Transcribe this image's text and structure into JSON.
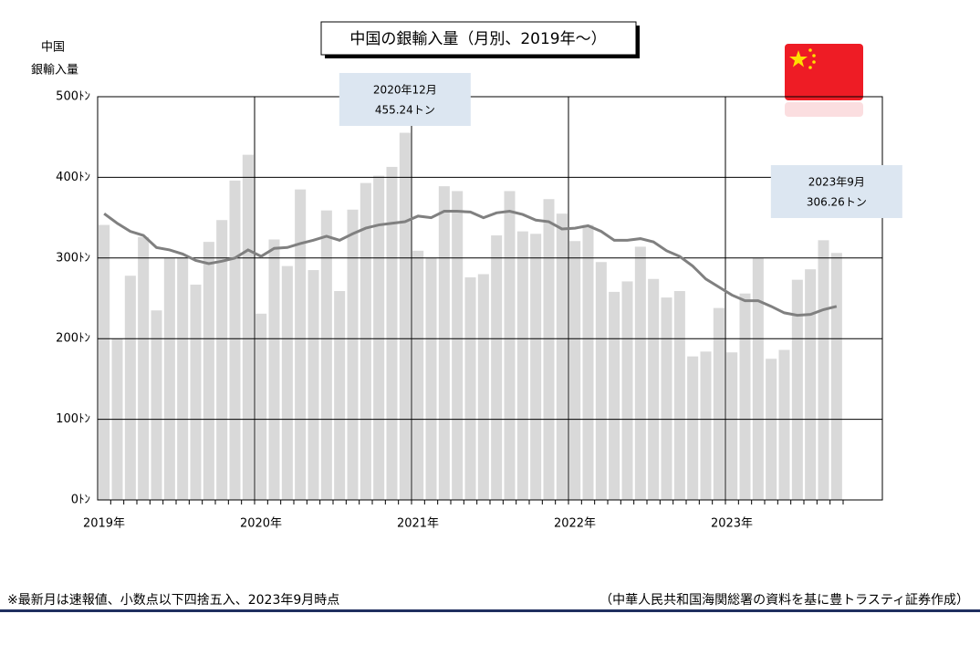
{
  "chart_data": {
    "type": "bar",
    "title": "中国の銀輸入量（月別、2019年～）",
    "y_label": [
      "中国",
      "銀輸入量"
    ],
    "categories": [
      null,
      null,
      null,
      null,
      null,
      null,
      null,
      null,
      null,
      null,
      null,
      null,
      null,
      null,
      null,
      null,
      null,
      null,
      null,
      null,
      null,
      null,
      null,
      null,
      null,
      null,
      null,
      null,
      null,
      null,
      null,
      null,
      null,
      null,
      null,
      null,
      null,
      null,
      null,
      null,
      null,
      null,
      null,
      null,
      null,
      null,
      null,
      null,
      null,
      null,
      null,
      null,
      null,
      null,
      null,
      null,
      null
    ],
    "series": [
      {
        "color": "#d9d9d9",
        "values": [
          341,
          200,
          278,
          326,
          235,
          300,
          300,
          267,
          320,
          347,
          396,
          428,
          231,
          323,
          290,
          385,
          285,
          359,
          259,
          360,
          393,
          402,
          413,
          455.24,
          309,
          300,
          389,
          383,
          276,
          280,
          328,
          383,
          333,
          330,
          373,
          355,
          321,
          341,
          295,
          258,
          271,
          314,
          274,
          251,
          259,
          178,
          184,
          238,
          183,
          256,
          300,
          175,
          186,
          273,
          286,
          322,
          306.26
        ]
      },
      {
        "type": "line",
        "color": "#808080",
        "values": [
          355,
          343,
          333,
          328,
          313,
          310,
          305,
          297,
          293,
          296,
          300,
          310,
          302,
          312,
          313,
          318,
          322,
          327,
          322,
          330,
          337,
          341,
          343,
          345,
          352,
          350,
          358,
          358,
          357,
          350,
          356,
          358,
          354,
          347,
          345,
          336,
          337,
          340,
          333,
          322,
          322,
          324,
          320,
          309,
          302,
          290,
          274,
          264,
          254,
          247,
          247,
          240,
          232,
          229,
          230,
          236,
          240
        ]
      }
    ],
    "xlim": [
      0,
      60
    ],
    "xticks": [
      {
        "value": 0,
        "label": "2019年"
      },
      {
        "value": 12,
        "label": "2020年"
      },
      {
        "value": 24,
        "label": "2021年"
      },
      {
        "value": 36,
        "label": "2022年"
      },
      {
        "value": 48,
        "label": "2023年"
      }
    ],
    "ylim": [
      0,
      500
    ],
    "yticks": [
      {
        "value": 0,
        "label": "0ﾄﾝ"
      },
      {
        "value": 100,
        "label": "100ﾄﾝ"
      },
      {
        "value": 200,
        "label": "200ﾄﾝ"
      },
      {
        "value": 300,
        "label": "300ﾄﾝ"
      },
      {
        "value": 400,
        "label": "400ﾄﾝ"
      },
      {
        "value": 500,
        "label": "500ﾄﾝ"
      }
    ],
    "grid": true,
    "annotations": [
      {
        "lines": [
          "2020年12月",
          "455.24トン"
        ],
        "index": 23
      },
      {
        "lines": [
          "2023年9月",
          "306.26トン"
        ],
        "index": 56
      }
    ],
    "footnote_left": "※最新月は速報値、小数点以下四捨五入、2023年9月時点",
    "footnote_right": "（中華人民共和国海関総署の資料を基に豊トラスティ証券作成）"
  }
}
